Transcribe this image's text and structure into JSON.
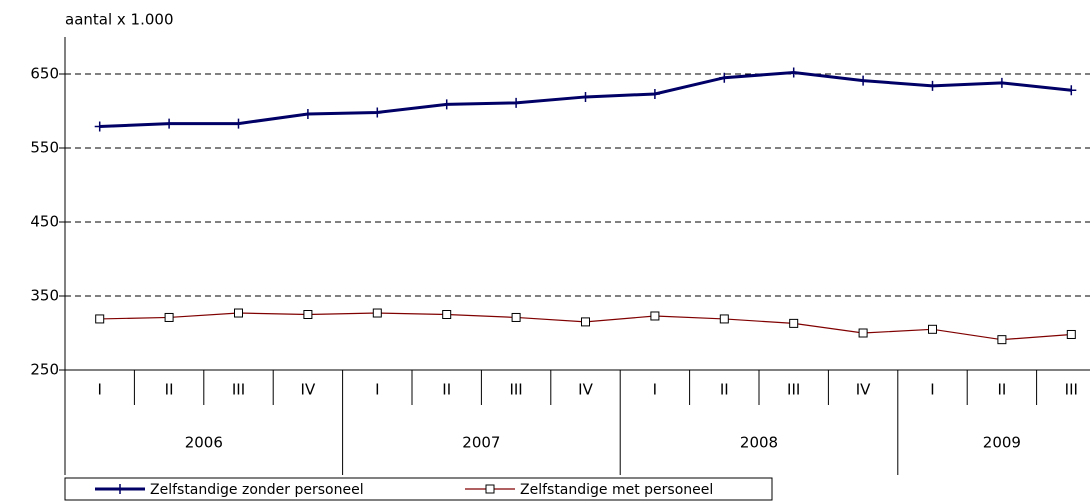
{
  "chart_data": {
    "type": "line",
    "y_label": "aantal x 1.000",
    "groups": [
      {
        "label": "2006",
        "categories": [
          "I",
          "II",
          "III",
          "IV"
        ]
      },
      {
        "label": "2007",
        "categories": [
          "I",
          "II",
          "III",
          "IV"
        ]
      },
      {
        "label": "2008",
        "categories": [
          "I",
          "II",
          "III",
          "IV"
        ]
      },
      {
        "label": "2009",
        "categories": [
          "I",
          "II",
          "III"
        ]
      }
    ],
    "series": [
      {
        "name": "Zelfstandige zonder personeel",
        "color": "#000066",
        "marker": "plus",
        "values": [
          579,
          583,
          583,
          596,
          598,
          609,
          611,
          619,
          623,
          645,
          652,
          641,
          634,
          638,
          628
        ]
      },
      {
        "name": "Zelfstandige met personeel",
        "color": "#800000",
        "marker": "square",
        "values": [
          319,
          321,
          327,
          325,
          327,
          325,
          321,
          315,
          323,
          319,
          313,
          300,
          305,
          291,
          298
        ]
      }
    ],
    "ylim": [
      250,
      700
    ],
    "yticks": [
      250,
      350,
      450,
      550,
      650
    ],
    "grid": true
  }
}
